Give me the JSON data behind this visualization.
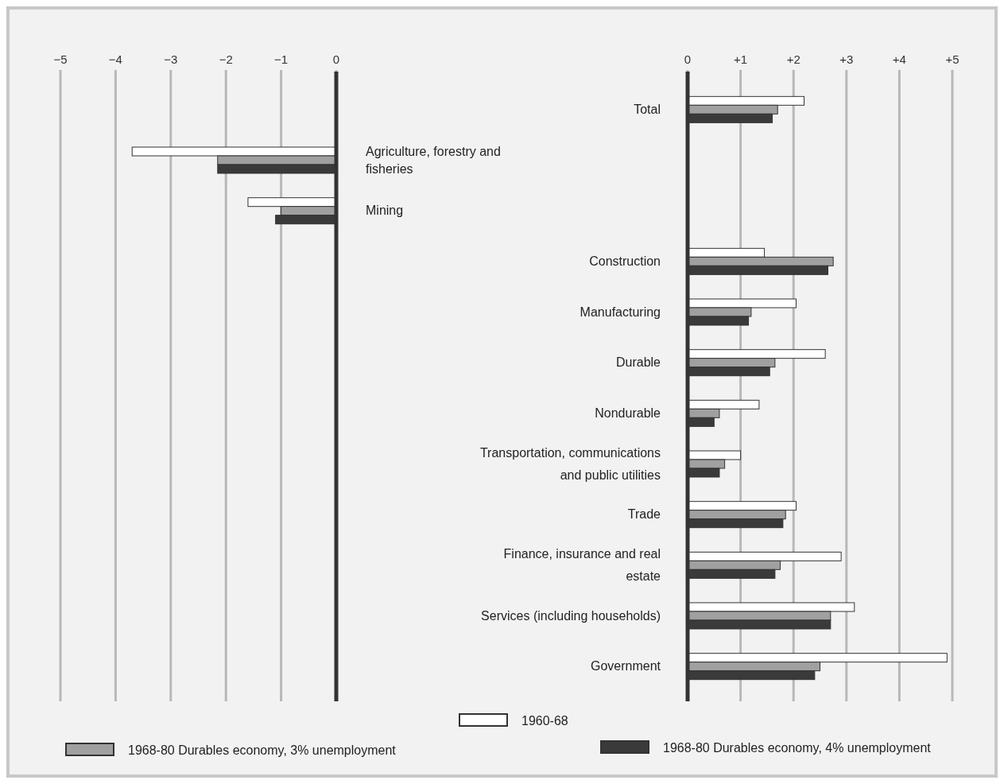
{
  "chart_data": [
    {
      "type": "bar",
      "orientation": "horizontal",
      "categories": [
        null,
        "Agriculture, forestry and fisheries",
        "Mining",
        null,
        null,
        null,
        null,
        null,
        null,
        null,
        null,
        null
      ],
      "series": [
        {
          "color": "#ffffff",
          "values": [
            null,
            -3.7,
            -1.6,
            null,
            null,
            null,
            null,
            null,
            null,
            null,
            null,
            null
          ]
        },
        {
          "color": "#a0a0a0",
          "values": [
            null,
            -2.15,
            -1.0,
            null,
            null,
            null,
            null,
            null,
            null,
            null,
            null,
            null
          ]
        },
        {
          "color": "#3a3a3a",
          "values": [
            null,
            -2.15,
            -1.1,
            null,
            null,
            null,
            null,
            null,
            null,
            null,
            null,
            null
          ]
        }
      ],
      "xlim": [
        -5,
        0
      ],
      "xticks": [
        {
          "value": -5,
          "label": "−5"
        },
        {
          "value": -4,
          "label": "−4"
        },
        {
          "value": -3,
          "label": "−3"
        },
        {
          "value": -2,
          "label": "−2"
        },
        {
          "value": -1,
          "label": "−1"
        },
        0
      ],
      "grid": "x"
    },
    {
      "type": "bar",
      "orientation": "horizontal",
      "categories": [
        "Total",
        null,
        null,
        "Construction",
        "Manufacturing",
        "Durable",
        "Nondurable",
        "Transportation, communications and public utilities",
        "Trade",
        "Finance, insurance and real estate",
        "Services (including households)",
        "Government"
      ],
      "series": [
        {
          "name": "1960-68",
          "color": "#ffffff",
          "values": [
            2.2,
            null,
            null,
            1.45,
            2.05,
            2.6,
            1.35,
            1.0,
            2.05,
            2.9,
            3.15,
            4.9
          ]
        },
        {
          "name": "1968-80 Durables economy, 3% unemployment",
          "color": "#a0a0a0",
          "values": [
            1.7,
            null,
            null,
            2.75,
            1.2,
            1.65,
            0.6,
            0.7,
            1.85,
            1.75,
            2.7,
            2.5
          ]
        },
        {
          "name": "1968-80 Durables economy, 4% unemployment",
          "color": "#3a3a3a",
          "values": [
            1.6,
            null,
            null,
            2.65,
            1.15,
            1.55,
            0.5,
            0.6,
            1.8,
            1.65,
            2.7,
            2.4
          ]
        }
      ],
      "xlim": [
        0,
        5
      ],
      "xticks": [
        0,
        {
          "value": 1,
          "label": "+1"
        },
        {
          "value": 2,
          "label": "+2"
        },
        {
          "value": 3,
          "label": "+3"
        },
        {
          "value": 4,
          "label": "+4"
        },
        {
          "value": 5,
          "label": "+5"
        }
      ],
      "grid": "x",
      "legend": "bottom"
    }
  ]
}
